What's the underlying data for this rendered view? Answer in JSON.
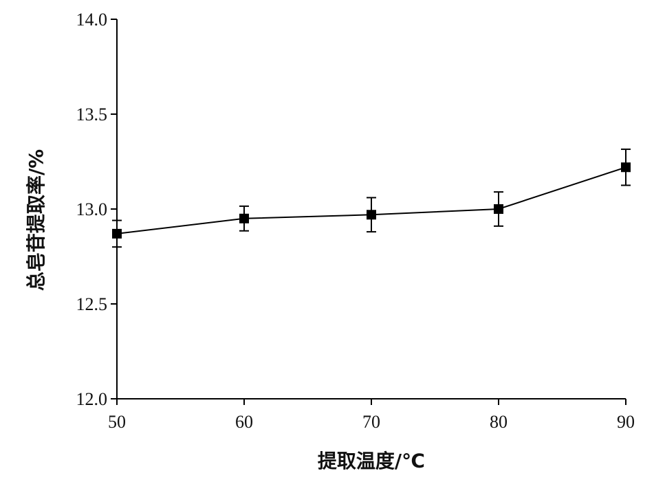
{
  "chart_data": {
    "type": "line",
    "xlabel": "提取温度/℃",
    "ylabel": "总皂苷提取率/%",
    "x": [
      50,
      60,
      70,
      80,
      90
    ],
    "series": [
      {
        "values": [
          12.87,
          12.95,
          12.97,
          13.0,
          13.22
        ],
        "errors": [
          0.07,
          0.065,
          0.09,
          0.09,
          0.095
        ]
      }
    ],
    "xlim": [
      50,
      90
    ],
    "ylim": [
      12.0,
      14.0
    ],
    "xticks": [
      "50",
      "60",
      "70",
      "80",
      "90"
    ],
    "yticks": [
      "12.0",
      "12.5",
      "13.0",
      "13.5",
      "14.0"
    ],
    "yticks_values": [
      12.0,
      12.5,
      13.0,
      13.5,
      14.0
    ],
    "marker": "square",
    "grid": false,
    "color": "#000000"
  }
}
